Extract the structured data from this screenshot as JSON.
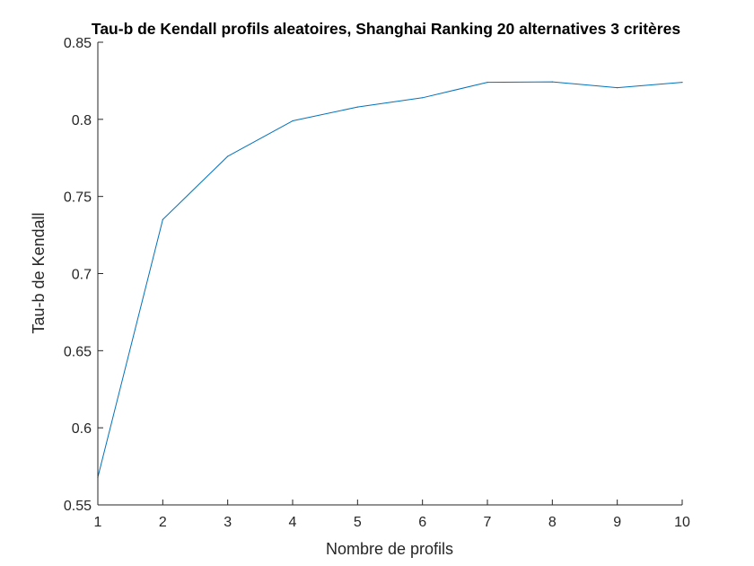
{
  "chart_data": {
    "type": "line",
    "title": "Tau-b de Kendall profils aleatoires, Shanghai Ranking 20 alternatives 3 critères",
    "xlabel": "Nombre de profils",
    "ylabel": "Tau-b de Kendall",
    "xlim": [
      1,
      10
    ],
    "ylim": [
      0.55,
      0.85
    ],
    "xticks": [
      "1",
      "2",
      "3",
      "4",
      "5",
      "6",
      "7",
      "8",
      "9",
      "10"
    ],
    "yticks": [
      "0.55",
      "0.6",
      "0.65",
      "0.7",
      "0.75",
      "0.8",
      "0.85"
    ],
    "grid": false,
    "legend": "none",
    "series": [
      {
        "color": "#0072bd",
        "x": [
          1,
          2,
          3,
          4,
          5,
          6,
          7,
          8,
          9,
          10
        ],
        "y": [
          0.568,
          0.735,
          0.776,
          0.799,
          0.808,
          0.814,
          0.824,
          0.8243,
          0.8205,
          0.824
        ]
      }
    ]
  }
}
